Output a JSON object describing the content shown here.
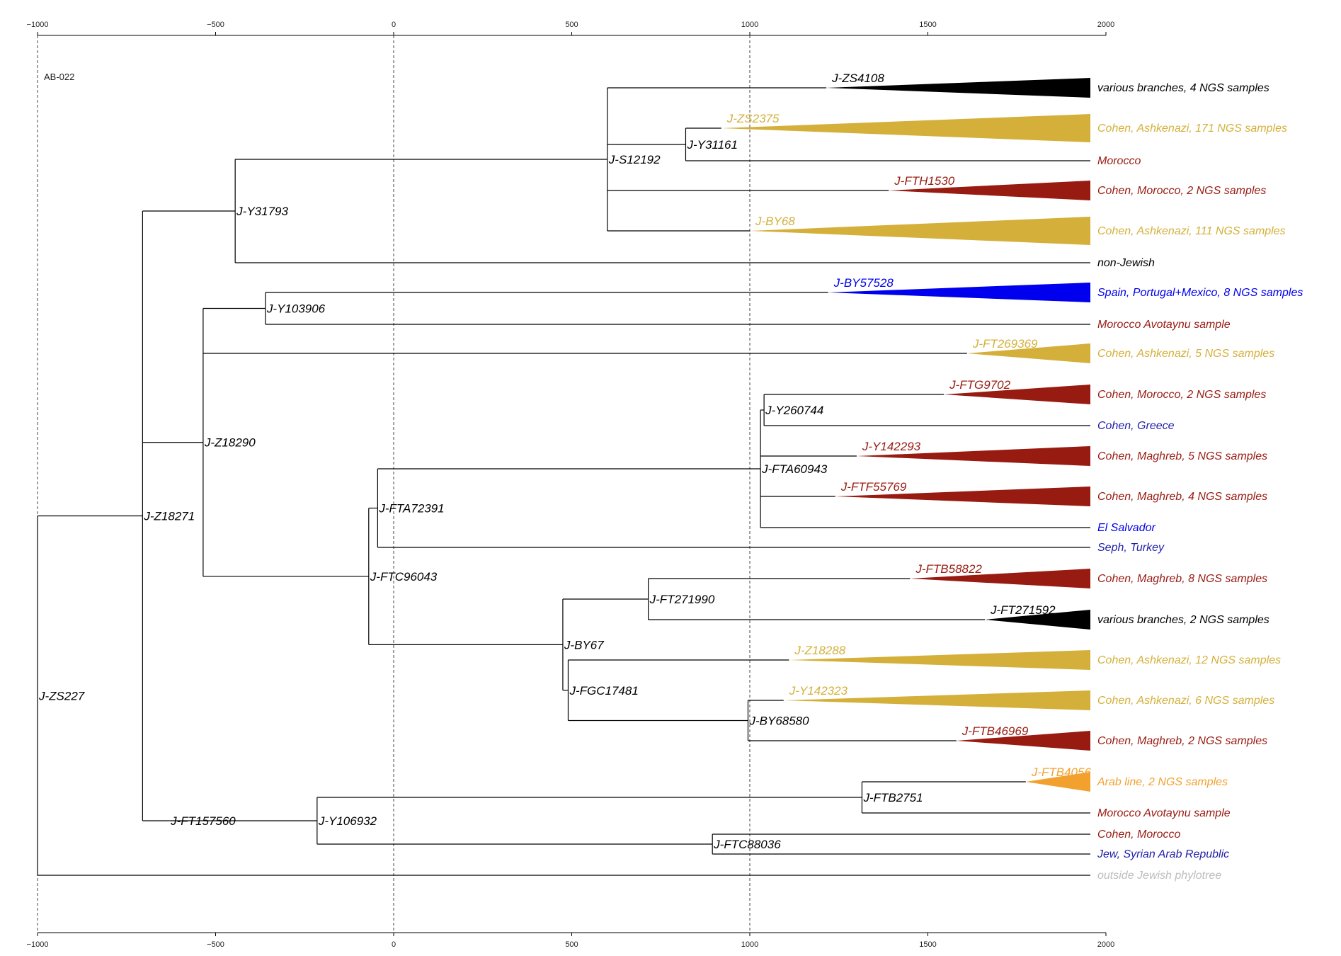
{
  "sample_id": "AB-022",
  "axis": {
    "ticks": [
      -1000,
      -500,
      0,
      500,
      1000,
      1500,
      2000
    ],
    "tick_labels": [
      "−1000",
      "−500",
      "0",
      "500",
      "1000",
      "1500",
      "2000"
    ],
    "era_left": "BCE",
    "era_right": "CE",
    "dashed_guides_at": [
      -1000,
      0,
      1000
    ]
  },
  "colors": {
    "black": "#000000",
    "gold": "#d4b03a",
    "darkred": "#981b12",
    "blue": "#0000ee",
    "navy": "#1f1fa8",
    "orange": "#f2a12f",
    "gray": "#bdbdbd"
  },
  "nodes": [
    {
      "id": "n_zs227",
      "label": "J-ZS227",
      "year": -1000
    },
    {
      "id": "n_z18271",
      "label": "J-Z18271",
      "year": -705
    },
    {
      "id": "n_y31793",
      "label": "J-Y31793",
      "year": -445
    },
    {
      "id": "n_s12192",
      "label": "J-S12192",
      "year": 600
    },
    {
      "id": "n_y31161",
      "label": "J-Y31161",
      "year": 820
    },
    {
      "id": "n_z18290",
      "label": "J-Z18290",
      "year": -535
    },
    {
      "id": "n_y103906",
      "label": "J-Y103906",
      "year": -360
    },
    {
      "id": "n_ftc96043",
      "label": "J-FTC96043",
      "year": -70
    },
    {
      "id": "n_fta72391",
      "label": "J-FTA72391",
      "year": -45
    },
    {
      "id": "n_fta60943",
      "label": "J-FTA60943",
      "year": 1030
    },
    {
      "id": "n_y260744",
      "label": "J-Y260744",
      "year": 1040
    },
    {
      "id": "n_by67",
      "label": "J-BY67",
      "year": 475
    },
    {
      "id": "n_ft271990",
      "label": "J-FT271990",
      "year": 715
    },
    {
      "id": "n_fgc17481",
      "label": "J-FGC17481",
      "year": 490
    },
    {
      "id": "n_by68580",
      "label": "J-BY68580",
      "year": 995
    },
    {
      "id": "n_ft157560",
      "label": "J-FT157560",
      "year": -630
    },
    {
      "id": "n_y106932",
      "label": "J-Y106932",
      "year": -215
    },
    {
      "id": "n_ftb2751",
      "label": "J-FTB2751",
      "year": 1315
    },
    {
      "id": "n_ftc88036",
      "label": "J-FTC88036",
      "year": 895
    }
  ],
  "tips": [
    {
      "label": "various branches, 4 NGS samples",
      "color": "black",
      "clade": "J-ZS4108",
      "clade_year": 1215,
      "height": 2
    },
    {
      "label": "Cohen, Ashkenazi, 171 NGS samples",
      "color": "gold",
      "clade": "J-ZS2375",
      "clade_year": 920,
      "height": 3
    },
    {
      "label": "Morocco",
      "color": "darkred",
      "clade": "",
      "clade_year": null,
      "height": 0
    },
    {
      "label": "Cohen, Morocco, 2 NGS samples",
      "color": "darkred",
      "clade": "J-FTH1530",
      "clade_year": 1390,
      "height": 2
    },
    {
      "label": "Cohen, Ashkenazi, 111 NGS samples",
      "color": "gold",
      "clade": "J-BY68",
      "clade_year": 1000,
      "height": 3
    },
    {
      "label": "non-Jewish",
      "color": "black",
      "clade": "",
      "clade_year": null,
      "height": 0
    },
    {
      "label": "Spain, Portugal+Mexico, 8 NGS samples",
      "color": "blue",
      "clade": "J-BY57528",
      "clade_year": 1220,
      "height": 2
    },
    {
      "label": "Morocco Avotaynu sample",
      "color": "darkred",
      "clade": "",
      "clade_year": null,
      "height": 0
    },
    {
      "label": "Cohen, Ashkenazi, 5 NGS samples",
      "color": "gold",
      "clade": "J-FT269369",
      "clade_year": 1610,
      "height": 2
    },
    {
      "label": "Cohen, Morocco, 2 NGS samples",
      "color": "darkred",
      "clade": "J-FTG9702",
      "clade_year": 1545,
      "height": 2
    },
    {
      "label": "Cohen, Greece",
      "color": "navy",
      "clade": "",
      "clade_year": null,
      "height": 0
    },
    {
      "label": "Cohen, Maghreb, 5 NGS samples",
      "color": "darkred",
      "clade": "J-Y142293",
      "clade_year": 1300,
      "height": 2
    },
    {
      "label": "Cohen, Maghreb, 4 NGS samples",
      "color": "darkred",
      "clade": "J-FTF55769",
      "clade_year": 1240,
      "height": 2
    },
    {
      "label": "El Salvador",
      "color": "blue",
      "clade": "",
      "clade_year": null,
      "height": 0
    },
    {
      "label": "Seph, Turkey",
      "color": "navy",
      "clade": "",
      "clade_year": null,
      "height": 0
    },
    {
      "label": "Cohen, Maghreb, 8 NGS samples",
      "color": "darkred",
      "clade": "J-FTB58822",
      "clade_year": 1450,
      "height": 2
    },
    {
      "label": "various branches, 2 NGS samples",
      "color": "black",
      "clade": "J-FT271592",
      "clade_year": 1660,
      "height": 2
    },
    {
      "label": "Cohen, Ashkenazi, 12 NGS samples",
      "color": "gold",
      "clade": "J-Z18288",
      "clade_year": 1110,
      "height": 2
    },
    {
      "label": "Cohen, Ashkenazi, 6 NGS samples",
      "color": "gold",
      "clade": "J-Y142323",
      "clade_year": 1095,
      "height": 2
    },
    {
      "label": "Cohen, Maghreb, 2 NGS samples",
      "color": "darkred",
      "clade": "J-FTB46969",
      "clade_year": 1580,
      "height": 2
    },
    {
      "label": "Arab line, 2 NGS samples",
      "color": "orange",
      "clade": "J-FTB4056",
      "clade_year": 1775,
      "height": 2
    },
    {
      "label": "Morocco Avotaynu sample",
      "color": "darkred",
      "clade": "",
      "clade_year": null,
      "height": 0
    },
    {
      "label": "Cohen, Morocco",
      "color": "darkred",
      "clade": "",
      "clade_year": null,
      "height": 0
    },
    {
      "label": "Jew, Syrian Arab Republic",
      "color": "navy",
      "clade": "",
      "clade_year": null,
      "height": 0
    },
    {
      "label": "outside Jewish phylotree",
      "color": "gray",
      "clade": "",
      "clade_year": null,
      "height": 0
    }
  ],
  "edges": [
    [
      "n_zs227",
      "n_z18271"
    ],
    [
      "n_zs227",
      "tip24"
    ],
    [
      "n_z18271",
      "n_y31793"
    ],
    [
      "n_z18271",
      "n_z18290"
    ],
    [
      "n_z18271",
      "n_ft157560"
    ],
    [
      "n_y31793",
      "n_s12192"
    ],
    [
      "n_y31793",
      "tip5"
    ],
    [
      "n_s12192",
      "tip0"
    ],
    [
      "n_s12192",
      "n_y31161"
    ],
    [
      "n_s12192",
      "tip3"
    ],
    [
      "n_s12192",
      "tip4"
    ],
    [
      "n_y31161",
      "tip1"
    ],
    [
      "n_y31161",
      "tip2"
    ],
    [
      "n_z18290",
      "n_y103906"
    ],
    [
      "n_z18290",
      "tip8"
    ],
    [
      "n_z18290",
      "n_ftc96043"
    ],
    [
      "n_y103906",
      "tip6"
    ],
    [
      "n_y103906",
      "tip7"
    ],
    [
      "n_ftc96043",
      "n_fta72391"
    ],
    [
      "n_ftc96043",
      "n_by67"
    ],
    [
      "n_fta72391",
      "n_fta60943"
    ],
    [
      "n_fta72391",
      "tip14"
    ],
    [
      "n_fta60943",
      "n_y260744"
    ],
    [
      "n_fta60943",
      "tip11"
    ],
    [
      "n_fta60943",
      "tip12"
    ],
    [
      "n_fta60943",
      "tip13"
    ],
    [
      "n_y260744",
      "tip9"
    ],
    [
      "n_y260744",
      "tip10"
    ],
    [
      "n_by67",
      "n_ft271990"
    ],
    [
      "n_by67",
      "n_fgc17481"
    ],
    [
      "n_ft271990",
      "tip15"
    ],
    [
      "n_ft271990",
      "tip16"
    ],
    [
      "n_fgc17481",
      "tip17"
    ],
    [
      "n_fgc17481",
      "n_by68580"
    ],
    [
      "n_by68580",
      "tip18"
    ],
    [
      "n_by68580",
      "tip19"
    ],
    [
      "n_ft157560",
      "n_y106932"
    ],
    [
      "n_y106932",
      "n_ftb2751"
    ],
    [
      "n_y106932",
      "n_ftc88036"
    ],
    [
      "n_ftb2751",
      "tip20"
    ],
    [
      "n_ftb2751",
      "tip21"
    ],
    [
      "n_ftc88036",
      "tip22"
    ],
    [
      "n_ftc88036",
      "tip23"
    ]
  ]
}
